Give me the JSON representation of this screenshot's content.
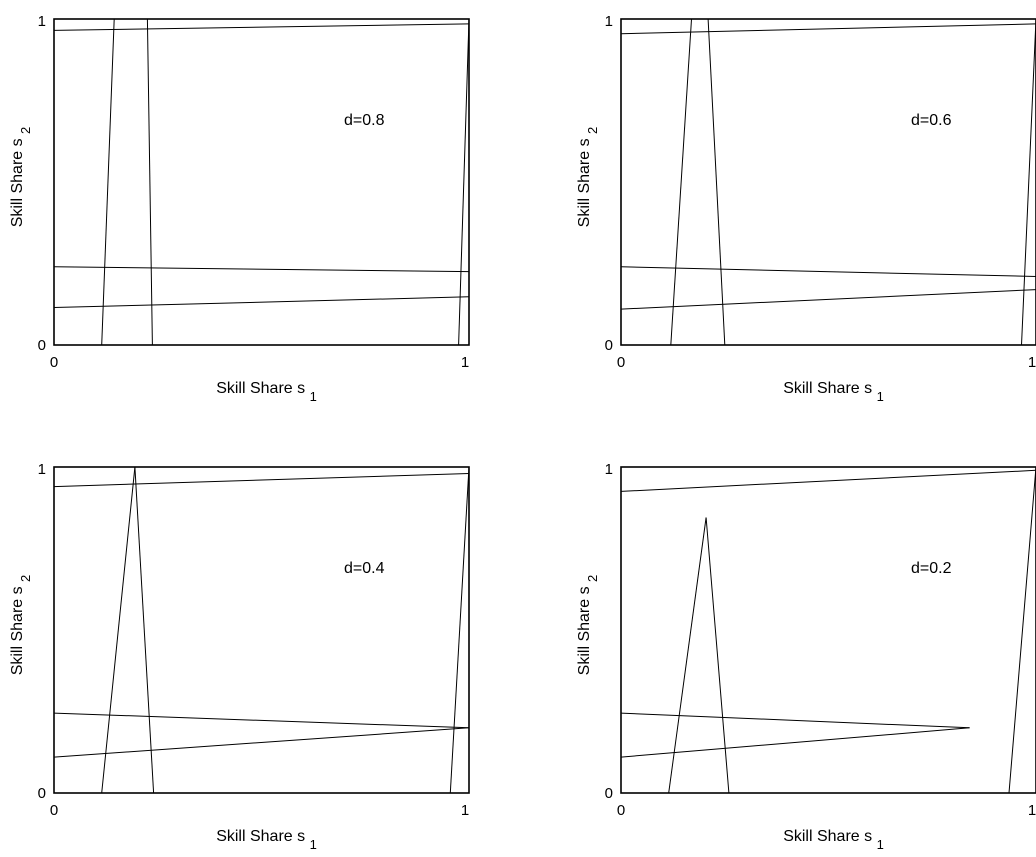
{
  "chart_data": [
    {
      "type": "line",
      "annotation": "d=0.8",
      "xlabel": "Skill Share s",
      "xlabel_subscript": "1",
      "ylabel": "Skill Share s",
      "ylabel_subscript": "2",
      "xlim": [
        0,
        1
      ],
      "ylim": [
        0,
        1
      ],
      "xticks": [
        "0",
        "1"
      ],
      "yticks": [
        "0",
        "1"
      ],
      "grid": false,
      "series": [
        {
          "x": [
            0.0,
            1.0
          ],
          "y": [
            0.965,
            0.985
          ]
        },
        {
          "x": [
            0.0,
            1.0
          ],
          "y": [
            0.24,
            0.225
          ]
        },
        {
          "x": [
            0.0,
            1.0
          ],
          "y": [
            0.115,
            0.148
          ]
        },
        {
          "x": [
            0.145,
            0.115
          ],
          "y": [
            1.0,
            0.0
          ]
        },
        {
          "x": [
            0.225,
            0.237
          ],
          "y": [
            1.0,
            0.0
          ]
        },
        {
          "x": [
            1.0,
            0.975
          ],
          "y": [
            1.0,
            0.0
          ]
        }
      ]
    },
    {
      "type": "line",
      "annotation": "d=0.6",
      "xlabel": "Skill Share s",
      "xlabel_subscript": "1",
      "ylabel": "Skill Share s",
      "ylabel_subscript": "2",
      "xlim": [
        0,
        1
      ],
      "ylim": [
        0,
        1
      ],
      "xticks": [
        "0",
        "1"
      ],
      "yticks": [
        "0",
        "1"
      ],
      "grid": false,
      "series": [
        {
          "x": [
            0.0,
            1.0
          ],
          "y": [
            0.955,
            0.985
          ]
        },
        {
          "x": [
            0.0,
            1.0
          ],
          "y": [
            0.24,
            0.21
          ]
        },
        {
          "x": [
            0.0,
            1.0
          ],
          "y": [
            0.11,
            0.17
          ]
        },
        {
          "x": [
            0.17,
            0.12
          ],
          "y": [
            1.0,
            0.0
          ]
        },
        {
          "x": [
            0.21,
            0.25
          ],
          "y": [
            1.0,
            0.0
          ]
        },
        {
          "x": [
            1.0,
            0.965
          ],
          "y": [
            1.0,
            0.0
          ]
        }
      ]
    },
    {
      "type": "line",
      "annotation": "d=0.4",
      "xlabel": "Skill Share s",
      "xlabel_subscript": "1",
      "ylabel": "Skill Share s",
      "ylabel_subscript": "2",
      "xlim": [
        0,
        1
      ],
      "ylim": [
        0,
        1
      ],
      "xticks": [
        "0",
        "1"
      ],
      "yticks": [
        "0",
        "1"
      ],
      "grid": false,
      "series": [
        {
          "x": [
            0.0,
            1.0
          ],
          "y": [
            0.94,
            0.98
          ]
        },
        {
          "x": [
            0.0,
            1.0
          ],
          "y": [
            0.245,
            0.2
          ]
        },
        {
          "x": [
            0.0,
            1.0
          ],
          "y": [
            0.11,
            0.2
          ]
        },
        {
          "x": [
            0.195,
            0.115
          ],
          "y": [
            1.0,
            0.0
          ]
        },
        {
          "x": [
            0.195,
            0.24
          ],
          "y": [
            1.0,
            0.0
          ]
        },
        {
          "x": [
            1.0,
            0.955
          ],
          "y": [
            1.0,
            0.0
          ]
        }
      ]
    },
    {
      "type": "line",
      "annotation": "d=0.2",
      "xlabel": "Skill Share s",
      "xlabel_subscript": "1",
      "ylabel": "Skill Share s",
      "ylabel_subscript": "2",
      "xlim": [
        0,
        1
      ],
      "ylim": [
        0,
        1
      ],
      "xticks": [
        "0",
        "1"
      ],
      "yticks": [
        "0",
        "1"
      ],
      "grid": false,
      "series": [
        {
          "x": [
            0.0,
            0.84
          ],
          "y": [
            0.245,
            0.2
          ]
        },
        {
          "x": [
            0.0,
            0.84
          ],
          "y": [
            0.11,
            0.2
          ]
        },
        {
          "x": [
            0.0,
            1.0
          ],
          "y": [
            0.925,
            0.99
          ]
        },
        {
          "x": [
            0.205,
            0.115
          ],
          "y": [
            0.845,
            0.0
          ]
        },
        {
          "x": [
            0.205,
            0.26
          ],
          "y": [
            0.845,
            0.0
          ]
        },
        {
          "x": [
            1.0,
            0.935
          ],
          "y": [
            1.0,
            0.0
          ]
        }
      ]
    }
  ]
}
